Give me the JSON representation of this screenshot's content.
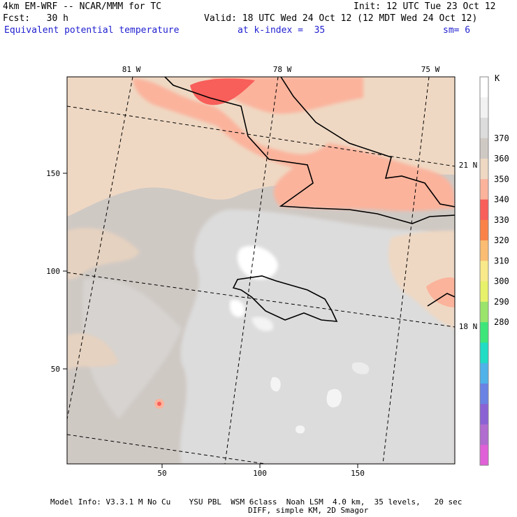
{
  "header": {
    "model_line": "4km EM-WRF -- NCAR/MMM for TC",
    "init_line": "Init: 12 UTC Tue 23 Oct 12",
    "fcst_line": "Fcst:   30 h",
    "valid_line": "Valid: 18 UTC Wed 24 Oct 12 (12 MDT Wed 24 Oct 12)",
    "field_title": "Equivalent potential temperature",
    "level_text": "at k-index =  35",
    "smoothing_text": "sm= 6"
  },
  "map": {
    "top_lon_labels": [
      "81 W",
      "78 W",
      "75 W"
    ],
    "right_lat_labels": [
      "21 N",
      "18 N"
    ],
    "x_axis_ticks": [
      "50",
      "100",
      "150"
    ],
    "y_axis_ticks": [
      "150",
      "100",
      "50"
    ],
    "field": "Equivalent potential temperature",
    "units": "K"
  },
  "colorbar": {
    "unit": "K",
    "levels": [
      "370",
      "360",
      "350",
      "340",
      "330",
      "320",
      "310",
      "300",
      "290",
      "280"
    ],
    "colors": [
      "#ffffff",
      "#f2f2f2",
      "#dcdcdc",
      "#cfc9c4",
      "#efd8c3",
      "#fbb39c",
      "#f85e5a",
      "#fa8248",
      "#fbbd73",
      "#f8ea8a",
      "#e7f26a",
      "#9ae46c",
      "#3ee67a",
      "#20dcc4",
      "#4fb2e8",
      "#6a82e4",
      "#8a62d4",
      "#b06cce",
      "#e060d8"
    ]
  },
  "footer": {
    "line1": "Model Info: V3.3.1 M No Cu    YSU PBL  WSM 6class  Noah LSM  4.0 km,  35 levels,   20 sec",
    "line2": "DIFF, simple KM, 2D Smagor"
  }
}
